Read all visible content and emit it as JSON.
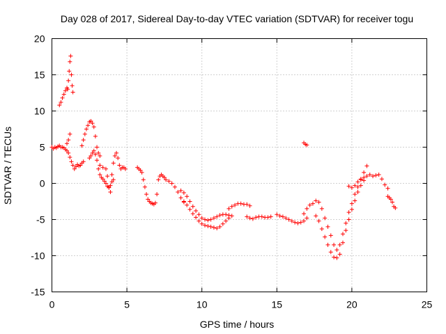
{
  "chart_data": {
    "type": "scatter",
    "title": "Day 028 of 2017, Sidereal Day-to-day VTEC variation (SDTVAR) for receiver togu",
    "xlabel": "GPS time / hours",
    "ylabel": "SDTVAR / TECUs",
    "xlim": [
      0,
      25
    ],
    "ylim": [
      -15,
      20
    ],
    "x_ticks": [
      0,
      5,
      10,
      15,
      20,
      25
    ],
    "x_tick_labels": [
      "0",
      "5",
      "10",
      "15",
      "20",
      "25"
    ],
    "y_ticks": [
      -15,
      -10,
      -5,
      0,
      5,
      10,
      15,
      20
    ],
    "y_tick_labels": [
      "-15",
      "-10",
      "-5",
      "0",
      "5",
      "10",
      "15",
      "20"
    ],
    "grid": true,
    "marker": "+",
    "color": "#ff0000",
    "series": [
      {
        "name": "SDTVAR",
        "points": [
          [
            0.0,
            5.0
          ],
          [
            0.1,
            4.8
          ],
          [
            0.2,
            5.0
          ],
          [
            0.3,
            4.9
          ],
          [
            0.4,
            5.1
          ],
          [
            0.5,
            5.2
          ],
          [
            0.6,
            5.0
          ],
          [
            0.7,
            5.0
          ],
          [
            0.8,
            4.9
          ],
          [
            0.9,
            4.7
          ],
          [
            1.0,
            4.5
          ],
          [
            1.1,
            4.2
          ],
          [
            1.2,
            3.6
          ],
          [
            1.3,
            3.0
          ],
          [
            1.4,
            2.5
          ],
          [
            1.5,
            2.0
          ],
          [
            1.6,
            2.3
          ],
          [
            1.7,
            2.6
          ],
          [
            1.8,
            2.4
          ],
          [
            1.9,
            2.5
          ],
          [
            2.0,
            2.8
          ],
          [
            2.1,
            3.0
          ],
          [
            0.5,
            10.8
          ],
          [
            0.6,
            11.2
          ],
          [
            0.7,
            11.8
          ],
          [
            0.8,
            12.3
          ],
          [
            0.9,
            12.8
          ],
          [
            1.0,
            13.2
          ],
          [
            1.05,
            13.0
          ],
          [
            1.1,
            14.2
          ],
          [
            1.15,
            15.5
          ],
          [
            1.2,
            16.8
          ],
          [
            1.25,
            17.6
          ],
          [
            1.3,
            15.0
          ],
          [
            1.35,
            13.5
          ],
          [
            1.4,
            12.6
          ],
          [
            1.0,
            5.5
          ],
          [
            1.1,
            6.0
          ],
          [
            1.2,
            6.8
          ],
          [
            2.0,
            5.2
          ],
          [
            2.1,
            6.0
          ],
          [
            2.2,
            6.8
          ],
          [
            2.3,
            7.5
          ],
          [
            2.4,
            8.0
          ],
          [
            2.5,
            8.5
          ],
          [
            2.6,
            8.6
          ],
          [
            2.7,
            8.3
          ],
          [
            2.8,
            7.8
          ],
          [
            2.9,
            6.5
          ],
          [
            3.0,
            5.0
          ],
          [
            3.1,
            4.2
          ],
          [
            3.2,
            3.8
          ],
          [
            2.5,
            3.5
          ],
          [
            2.6,
            3.8
          ],
          [
            2.7,
            4.2
          ],
          [
            2.8,
            4.5
          ],
          [
            2.9,
            4.0
          ],
          [
            3.0,
            3.2
          ],
          [
            3.1,
            2.0
          ],
          [
            3.2,
            1.2
          ],
          [
            3.3,
            0.8
          ],
          [
            3.4,
            0.6
          ],
          [
            3.5,
            0.3
          ],
          [
            3.6,
            0.0
          ],
          [
            3.7,
            -0.4
          ],
          [
            3.8,
            -0.6
          ],
          [
            3.9,
            -0.3
          ],
          [
            4.0,
            0.2
          ],
          [
            4.1,
            0.5
          ],
          [
            3.2,
            2.5
          ],
          [
            3.4,
            2.2
          ],
          [
            3.6,
            2.0
          ],
          [
            3.7,
            1.0
          ],
          [
            3.8,
            -0.5
          ],
          [
            3.9,
            -1.2
          ],
          [
            4.0,
            1.2
          ],
          [
            4.1,
            2.8
          ],
          [
            4.2,
            3.8
          ],
          [
            4.3,
            4.2
          ],
          [
            4.4,
            3.5
          ],
          [
            4.5,
            2.5
          ],
          [
            4.6,
            2.0
          ],
          [
            4.7,
            2.2
          ],
          [
            4.8,
            2.2
          ],
          [
            4.9,
            2.0
          ],
          [
            5.7,
            2.2
          ],
          [
            5.8,
            2.0
          ],
          [
            5.9,
            1.8
          ],
          [
            6.0,
            1.5
          ],
          [
            6.1,
            0.5
          ],
          [
            6.2,
            -0.5
          ],
          [
            6.3,
            -1.5
          ],
          [
            6.4,
            -2.2
          ],
          [
            6.5,
            -2.5
          ],
          [
            6.6,
            -2.7
          ],
          [
            6.7,
            -2.8
          ],
          [
            6.8,
            -2.9
          ],
          [
            6.9,
            -2.7
          ],
          [
            7.0,
            -1.5
          ],
          [
            7.1,
            0.5
          ],
          [
            7.2,
            1.0
          ],
          [
            7.3,
            1.2
          ],
          [
            7.4,
            1.0
          ],
          [
            7.5,
            0.8
          ],
          [
            7.6,
            0.5
          ],
          [
            7.8,
            0.3
          ],
          [
            8.0,
            0.0
          ],
          [
            8.2,
            -0.5
          ],
          [
            8.4,
            -1.2
          ],
          [
            8.6,
            -2.0
          ],
          [
            8.8,
            -2.5
          ],
          [
            8.6,
            -1.0
          ],
          [
            8.8,
            -1.3
          ],
          [
            9.0,
            -1.8
          ],
          [
            9.2,
            -2.5
          ],
          [
            9.4,
            -3.2
          ],
          [
            9.6,
            -3.8
          ],
          [
            9.8,
            -4.3
          ],
          [
            10.0,
            -4.8
          ],
          [
            10.2,
            -5.0
          ],
          [
            10.4,
            -5.1
          ],
          [
            10.6,
            -5.0
          ],
          [
            10.8,
            -4.8
          ],
          [
            11.0,
            -4.6
          ],
          [
            11.2,
            -4.4
          ],
          [
            11.4,
            -4.3
          ],
          [
            11.6,
            -4.3
          ],
          [
            11.8,
            -4.4
          ],
          [
            8.8,
            -2.6
          ],
          [
            9.0,
            -3.0
          ],
          [
            9.2,
            -3.6
          ],
          [
            9.4,
            -4.2
          ],
          [
            9.6,
            -4.7
          ],
          [
            9.8,
            -5.2
          ],
          [
            10.0,
            -5.6
          ],
          [
            10.2,
            -5.8
          ],
          [
            10.4,
            -5.9
          ],
          [
            10.6,
            -6.0
          ],
          [
            10.8,
            -6.1
          ],
          [
            11.0,
            -6.2
          ],
          [
            11.2,
            -6.0
          ],
          [
            11.4,
            -5.6
          ],
          [
            11.6,
            -5.2
          ],
          [
            11.8,
            -4.8
          ],
          [
            12.0,
            -4.5
          ],
          [
            11.8,
            -3.5
          ],
          [
            12.0,
            -3.2
          ],
          [
            12.2,
            -3.0
          ],
          [
            12.4,
            -2.8
          ],
          [
            12.6,
            -2.8
          ],
          [
            12.8,
            -2.9
          ],
          [
            13.0,
            -2.9
          ],
          [
            13.2,
            -3.1
          ],
          [
            13.0,
            -4.6
          ],
          [
            13.2,
            -4.8
          ],
          [
            13.4,
            -4.9
          ],
          [
            13.6,
            -4.7
          ],
          [
            13.8,
            -4.6
          ],
          [
            14.0,
            -4.6
          ],
          [
            14.2,
            -4.7
          ],
          [
            14.4,
            -4.7
          ],
          [
            14.6,
            -4.6
          ],
          [
            15.0,
            -4.3
          ],
          [
            15.2,
            -4.5
          ],
          [
            15.4,
            -4.6
          ],
          [
            15.6,
            -4.8
          ],
          [
            15.8,
            -5.0
          ],
          [
            16.0,
            -5.2
          ],
          [
            16.2,
            -5.4
          ],
          [
            16.4,
            -5.5
          ],
          [
            16.6,
            -5.4
          ],
          [
            16.8,
            -5.2
          ],
          [
            17.0,
            -4.8
          ],
          [
            16.8,
            5.6
          ],
          [
            16.9,
            5.4
          ],
          [
            17.0,
            5.3
          ],
          [
            16.8,
            -4.2
          ],
          [
            17.0,
            -3.5
          ],
          [
            17.2,
            -3.0
          ],
          [
            17.4,
            -2.8
          ],
          [
            17.6,
            -2.4
          ],
          [
            17.8,
            -2.6
          ],
          [
            18.0,
            -3.5
          ],
          [
            18.2,
            -4.8
          ],
          [
            18.4,
            -6.0
          ],
          [
            18.6,
            -7.2
          ],
          [
            18.8,
            -8.5
          ],
          [
            19.0,
            -9.2
          ],
          [
            19.2,
            -8.5
          ],
          [
            19.4,
            -7.0
          ],
          [
            19.6,
            -5.5
          ],
          [
            19.8,
            -4.0
          ],
          [
            20.0,
            -2.8
          ],
          [
            20.2,
            -1.5
          ],
          [
            20.4,
            -0.5
          ],
          [
            20.6,
            0.5
          ],
          [
            20.8,
            1.5
          ],
          [
            21.0,
            2.4
          ],
          [
            17.6,
            -4.5
          ],
          [
            17.8,
            -5.2
          ],
          [
            18.0,
            -6.3
          ],
          [
            18.2,
            -7.4
          ],
          [
            18.4,
            -8.5
          ],
          [
            18.6,
            -9.5
          ],
          [
            18.8,
            -10.2
          ],
          [
            19.0,
            -10.3
          ],
          [
            19.2,
            -9.8
          ],
          [
            19.4,
            -8.2
          ],
          [
            19.6,
            -6.5
          ],
          [
            19.8,
            -5.0
          ],
          [
            20.0,
            -3.6
          ],
          [
            20.2,
            -2.4
          ],
          [
            20.4,
            -1.2
          ],
          [
            20.6,
            -0.3
          ],
          [
            20.8,
            0.4
          ],
          [
            19.8,
            -0.4
          ],
          [
            20.0,
            -0.6
          ],
          [
            20.2,
            -0.3
          ],
          [
            20.4,
            0.2
          ],
          [
            20.6,
            0.6
          ],
          [
            20.8,
            0.8
          ],
          [
            21.0,
            1.0
          ],
          [
            21.2,
            1.2
          ],
          [
            21.4,
            1.0
          ],
          [
            21.6,
            1.1
          ],
          [
            21.8,
            1.2
          ],
          [
            22.0,
            0.6
          ],
          [
            22.2,
            -0.2
          ],
          [
            22.4,
            -0.7
          ],
          [
            22.4,
            -1.8
          ],
          [
            22.5,
            -2.0
          ],
          [
            22.6,
            -2.2
          ],
          [
            22.7,
            -2.6
          ],
          [
            22.8,
            -3.2
          ],
          [
            22.9,
            -3.4
          ]
        ]
      }
    ]
  }
}
